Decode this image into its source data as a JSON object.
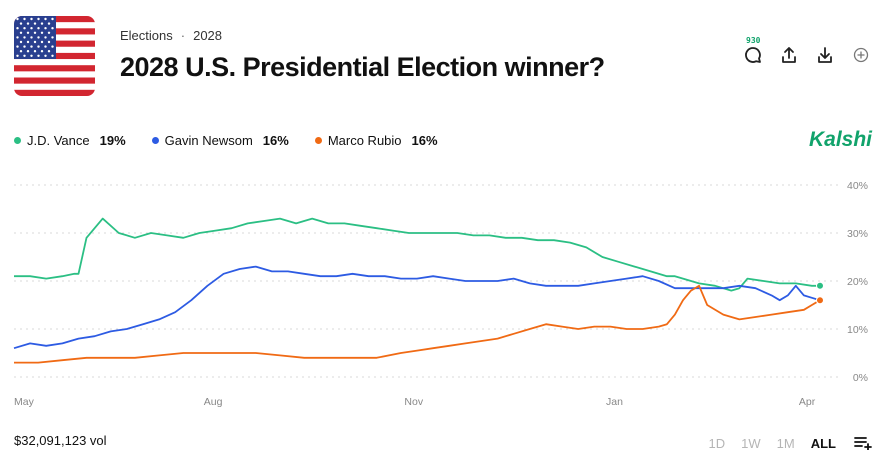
{
  "header": {
    "breadcrumb_category": "Elections",
    "breadcrumb_year": "2028",
    "title": "2028 U.S. Presidential Election winner?"
  },
  "actions": {
    "comments_count": "930",
    "icons": [
      "comment-icon",
      "share-icon",
      "download-icon",
      "add-icon"
    ]
  },
  "legend": [
    {
      "name": "J.D. Vance",
      "value": "19%",
      "color": "#2bbf84"
    },
    {
      "name": "Gavin Newsom",
      "value": "16%",
      "color": "#2d5be3"
    },
    {
      "name": "Marco Rubio",
      "value": "16%",
      "color": "#f06a14"
    }
  ],
  "brand": {
    "name": "Kalshi",
    "color": "#11a36b"
  },
  "footer": {
    "volume": "$32,091,123 vol",
    "ranges": [
      "1D",
      "1W",
      "1M",
      "ALL"
    ],
    "active_range": "ALL"
  },
  "chart_data": {
    "type": "line",
    "x_tick_labels": [
      "May",
      "Aug",
      "Nov",
      "Jan",
      "Apr"
    ],
    "y_tick_labels": [
      "40%",
      "30%",
      "20%",
      "10%",
      "0%"
    ],
    "ylim": [
      0,
      40
    ],
    "grid": true,
    "series": [
      {
        "name": "J.D. Vance",
        "color": "#2bbf84",
        "x": [
          0,
          2,
          4,
          6,
          7.5,
          8,
          9,
          10,
          11,
          13,
          15,
          17,
          19,
          21,
          23,
          25,
          27,
          29,
          31,
          33,
          35,
          37,
          39,
          41,
          43,
          45,
          47,
          49,
          51,
          53,
          55,
          57,
          59,
          61,
          63,
          65,
          67,
          69,
          71,
          73,
          75,
          77,
          79,
          81,
          82,
          83,
          85,
          87,
          89,
          90,
          91,
          93,
          95,
          97,
          99,
          100
        ],
        "values": [
          21,
          21,
          20.5,
          21,
          21.5,
          21.5,
          29,
          31,
          33,
          30,
          29,
          30,
          29.5,
          29,
          30,
          30.5,
          31,
          32,
          32.5,
          33,
          32,
          33,
          32,
          32,
          31.5,
          31,
          30.5,
          30,
          30,
          30,
          30,
          29.5,
          29.5,
          29,
          29,
          28.5,
          28.5,
          28,
          27,
          25,
          24,
          23,
          22,
          21,
          21,
          20.5,
          19.5,
          19,
          18,
          18.5,
          20.5,
          20,
          19.5,
          19.5,
          19,
          19
        ]
      },
      {
        "name": "Gavin Newsom",
        "color": "#2d5be3",
        "x": [
          0,
          2,
          4,
          6,
          8,
          10,
          12,
          14,
          16,
          18,
          20,
          22,
          24,
          26,
          28,
          30,
          32,
          34,
          36,
          38,
          40,
          42,
          44,
          46,
          48,
          50,
          52,
          54,
          56,
          58,
          60,
          62,
          64,
          66,
          68,
          70,
          72,
          74,
          76,
          78,
          80,
          82,
          84,
          86,
          88,
          90,
          92,
          94,
          95,
          96,
          97,
          98,
          99,
          100
        ],
        "values": [
          6,
          7,
          6.5,
          7,
          8,
          8.5,
          9.5,
          10,
          11,
          12,
          13.5,
          16,
          19,
          21.5,
          22.5,
          23,
          22,
          22,
          21.5,
          21,
          21,
          21.5,
          21,
          21,
          20.5,
          20.5,
          21,
          20.5,
          20,
          20,
          20,
          20.5,
          19.5,
          19,
          19,
          19,
          19.5,
          20,
          20.5,
          21,
          20,
          18.5,
          18.5,
          18.5,
          18.5,
          19,
          18.5,
          17,
          16,
          17,
          19,
          17,
          16.5,
          16
        ]
      },
      {
        "name": "Marco Rubio",
        "color": "#f06a14",
        "x": [
          0,
          3,
          6,
          9,
          12,
          15,
          18,
          21,
          24,
          27,
          30,
          33,
          36,
          39,
          42,
          45,
          48,
          50,
          52,
          54,
          56,
          58,
          60,
          62,
          64,
          66,
          68,
          70,
          72,
          74,
          76,
          78,
          80,
          81,
          82,
          83,
          84,
          85,
          86,
          88,
          90,
          92,
          94,
          96,
          98,
          99,
          100
        ],
        "values": [
          3,
          3,
          3.5,
          4,
          4,
          4,
          4.5,
          5,
          5,
          5,
          5,
          4.5,
          4,
          4,
          4,
          4,
          5,
          5.5,
          6,
          6.5,
          7,
          7.5,
          8,
          9,
          10,
          11,
          10.5,
          10,
          10.5,
          10.5,
          10,
          10,
          10.5,
          11,
          13,
          16,
          18,
          19,
          15,
          13,
          12,
          12.5,
          13,
          13.5,
          14,
          15,
          16
        ]
      }
    ]
  }
}
